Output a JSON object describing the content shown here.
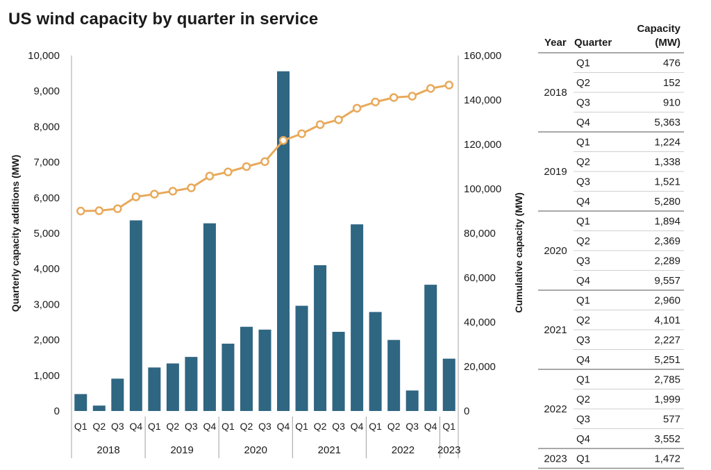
{
  "title": "US wind capacity by quarter in service",
  "chart_data": {
    "type": "bar",
    "title": "US wind capacity by quarter in service",
    "categories": [
      "Q1",
      "Q2",
      "Q3",
      "Q4",
      "Q1",
      "Q2",
      "Q3",
      "Q4",
      "Q1",
      "Q2",
      "Q3",
      "Q4",
      "Q1",
      "Q2",
      "Q3",
      "Q4",
      "Q1",
      "Q2",
      "Q3",
      "Q4",
      "Q1"
    ],
    "year_groups": [
      {
        "year": "2018",
        "count": 4
      },
      {
        "year": "2019",
        "count": 4
      },
      {
        "year": "2020",
        "count": 4
      },
      {
        "year": "2021",
        "count": 4
      },
      {
        "year": "2022",
        "count": 4
      },
      {
        "year": "2023",
        "count": 1
      }
    ],
    "series": [
      {
        "type": "bar",
        "axis": "left",
        "values": [
          476,
          152,
          910,
          5363,
          1224,
          1338,
          1521,
          5280,
          1894,
          2369,
          2289,
          9557,
          2960,
          4101,
          2227,
          5251,
          2785,
          1999,
          577,
          3552,
          1472
        ]
      },
      {
        "type": "line",
        "axis": "right",
        "values": [
          90000,
          90150,
          91050,
          96400,
          97600,
          98950,
          100450,
          105750,
          107600,
          110000,
          112250,
          121800,
          124800,
          128900,
          131100,
          136300,
          139100,
          141100,
          141700,
          145200,
          146700
        ]
      }
    ],
    "ylabel": "Quarterly capacity additions (MW)",
    "ylim": [
      0,
      10000
    ],
    "yticks": [
      "10,000",
      "9,000",
      "8,000",
      "7,000",
      "6,000",
      "5,000",
      "4,000",
      "3,000",
      "2,000",
      "1,000",
      "0"
    ],
    "y2label": "Cumulative capacity (MW)",
    "y2lim": [
      0,
      160000
    ],
    "y2ticks": [
      "160,000",
      "140,000",
      "120,000",
      "100,000",
      "80,000",
      "60,000",
      "40,000",
      "20,000",
      "0"
    ],
    "colors": {
      "bar": "#2f6682",
      "line": "#e8a95a",
      "marker_fill": "#ffffff",
      "axis": "#a0a0a0",
      "text": "#1a1a1a"
    },
    "grid": false,
    "legend": "none"
  },
  "table": {
    "headers": {
      "year": "Year",
      "quarter": "Quarter",
      "capacity_line1": "Capacity",
      "capacity_line2": "(MW)"
    },
    "groups": [
      {
        "year": "2018",
        "rows": [
          {
            "q": "Q1",
            "v": "476"
          },
          {
            "q": "Q2",
            "v": "152"
          },
          {
            "q": "Q3",
            "v": "910"
          },
          {
            "q": "Q4",
            "v": "5,363"
          }
        ]
      },
      {
        "year": "2019",
        "rows": [
          {
            "q": "Q1",
            "v": "1,224"
          },
          {
            "q": "Q2",
            "v": "1,338"
          },
          {
            "q": "Q3",
            "v": "1,521"
          },
          {
            "q": "Q4",
            "v": "5,280"
          }
        ]
      },
      {
        "year": "2020",
        "rows": [
          {
            "q": "Q1",
            "v": "1,894"
          },
          {
            "q": "Q2",
            "v": "2,369"
          },
          {
            "q": "Q3",
            "v": "2,289"
          },
          {
            "q": "Q4",
            "v": "9,557"
          }
        ]
      },
      {
        "year": "2021",
        "rows": [
          {
            "q": "Q1",
            "v": "2,960"
          },
          {
            "q": "Q2",
            "v": "4,101"
          },
          {
            "q": "Q3",
            "v": "2,227"
          },
          {
            "q": "Q4",
            "v": "5,251"
          }
        ]
      },
      {
        "year": "2022",
        "rows": [
          {
            "q": "Q1",
            "v": "2,785"
          },
          {
            "q": "Q2",
            "v": "1,999"
          },
          {
            "q": "Q3",
            "v": "577"
          },
          {
            "q": "Q4",
            "v": "3,552"
          }
        ]
      },
      {
        "year": "2023",
        "rows": [
          {
            "q": "Q1",
            "v": "1,472"
          }
        ]
      }
    ]
  }
}
